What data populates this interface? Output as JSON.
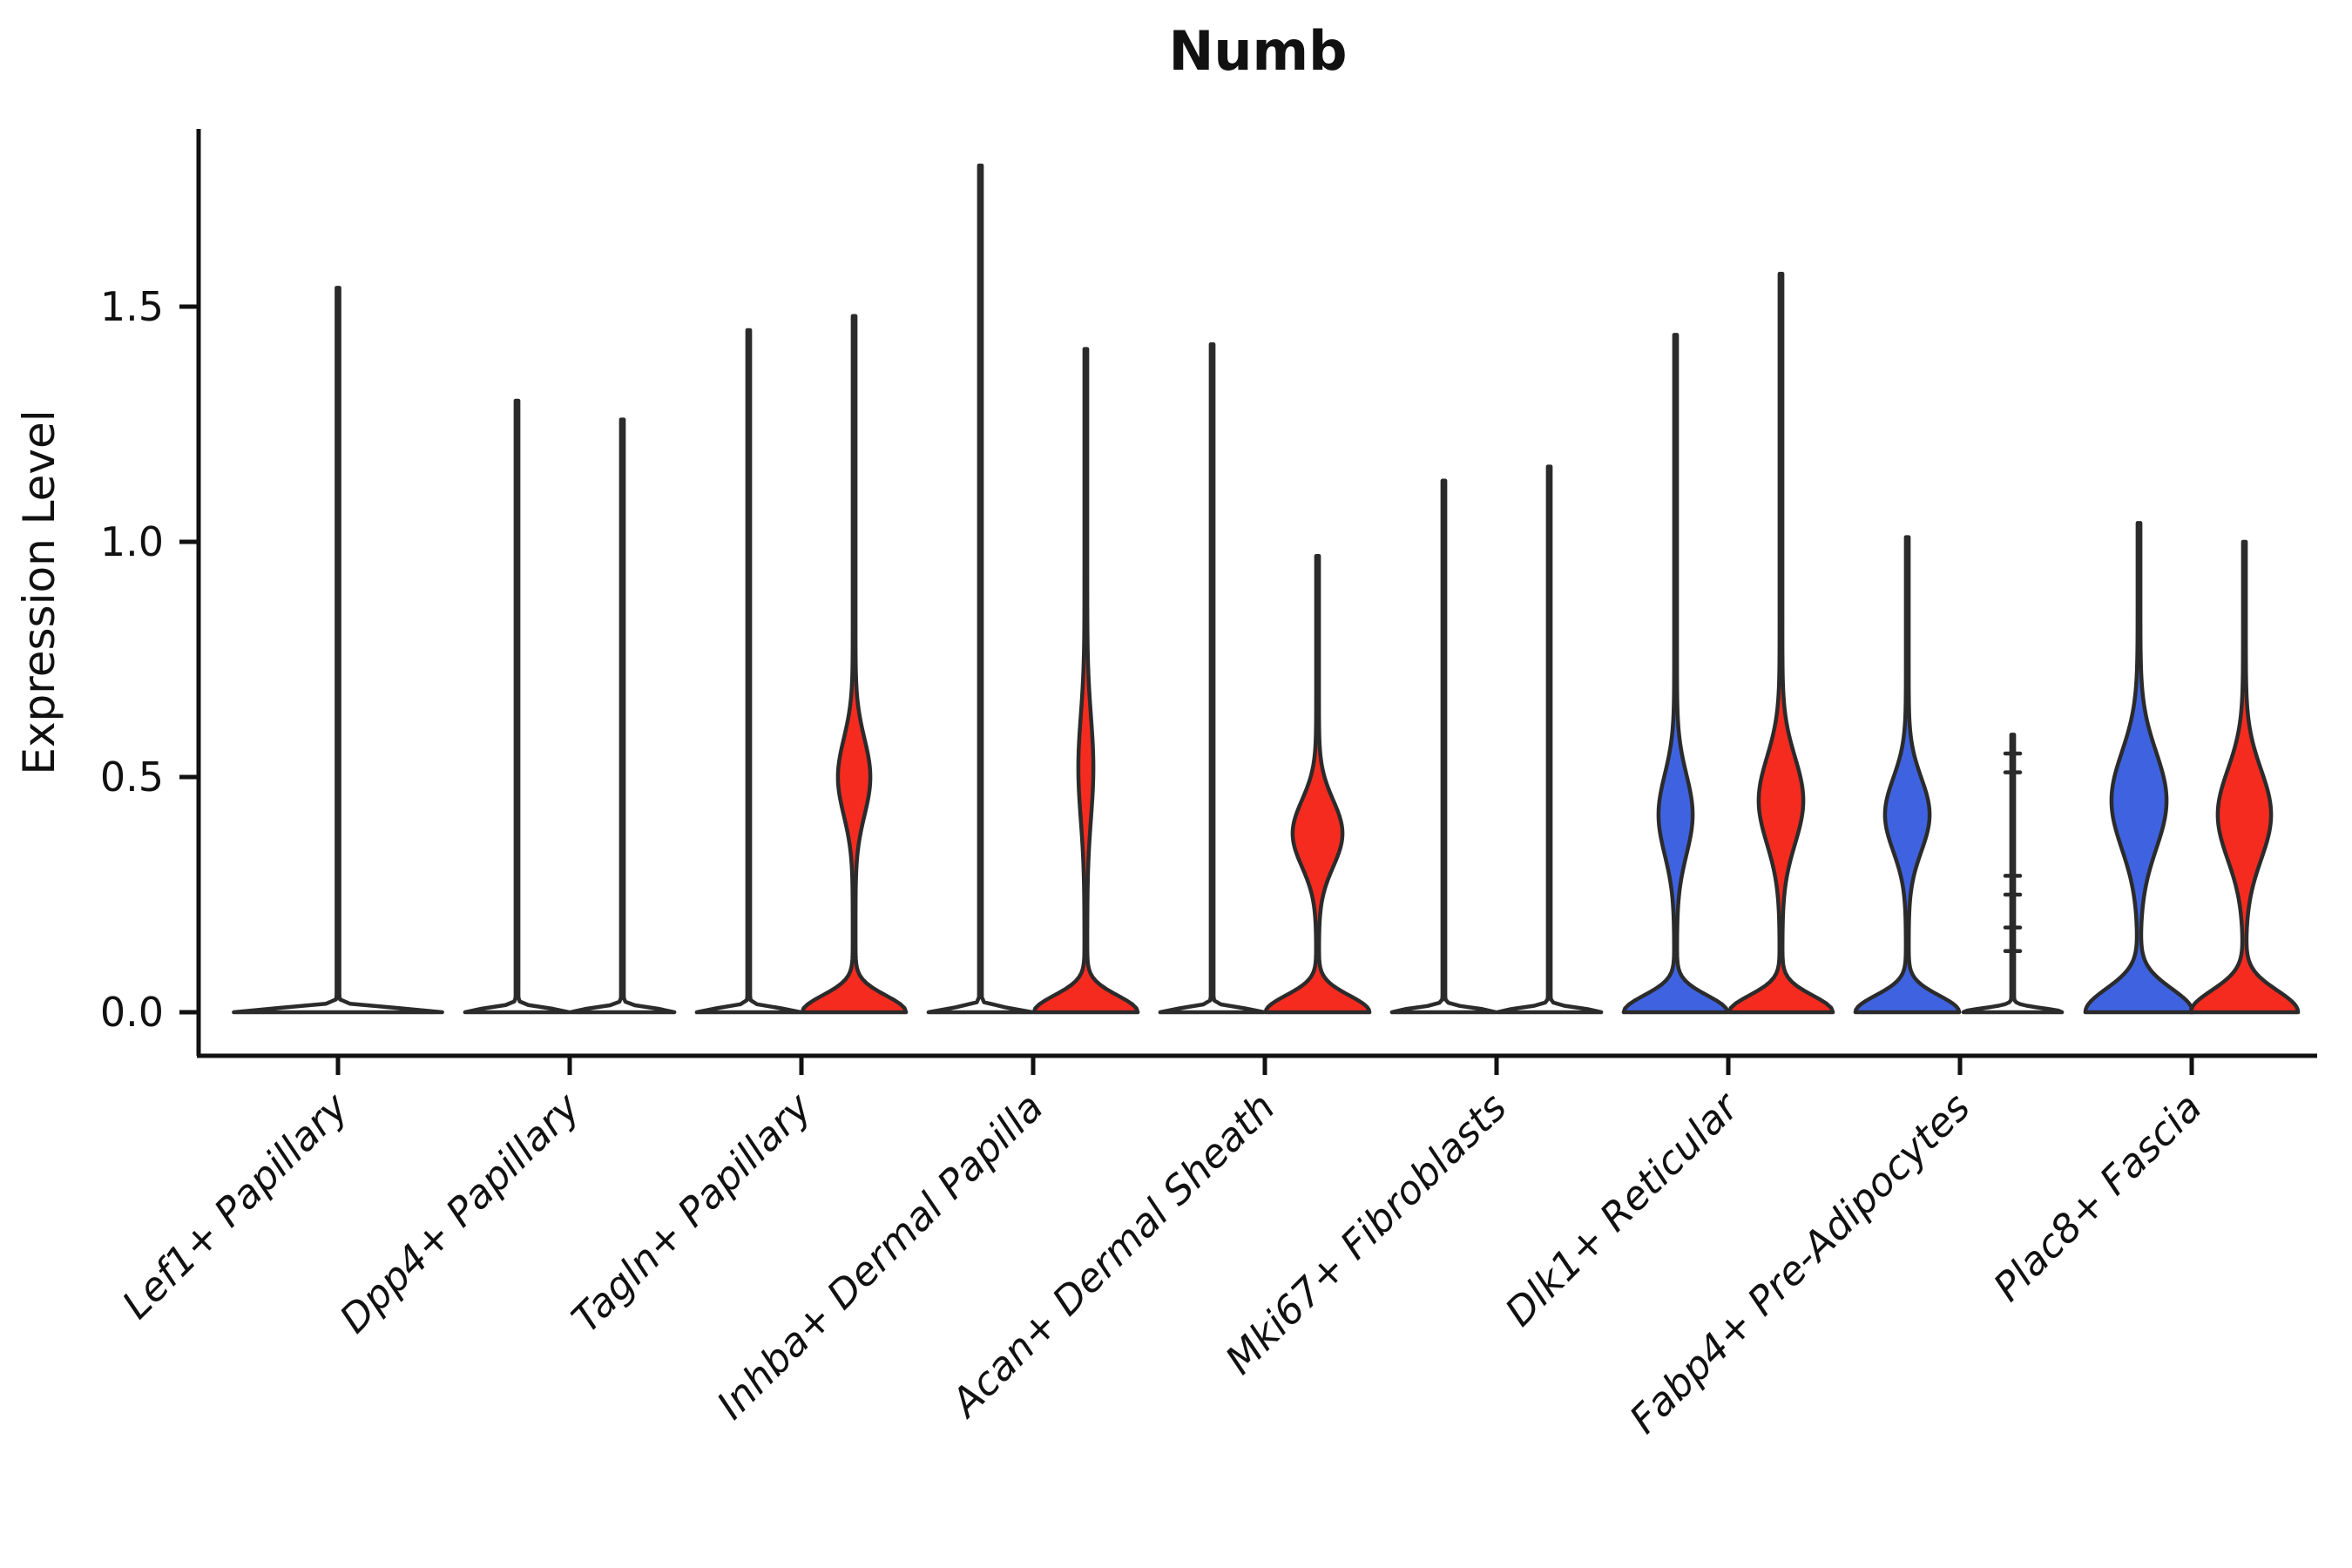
{
  "title": "Numb",
  "ylabel": "Expression Level",
  "colors": {
    "blue": "#3F63E0",
    "red": "#F62B20",
    "white": "#FFFFFF",
    "outline": "#2B2B2B",
    "axis": "#111111"
  },
  "y_axis": {
    "tick_labels": [
      "0.0",
      "0.5",
      "1.0",
      "1.5"
    ],
    "tick_values": [
      0.0,
      0.5,
      1.0,
      1.5
    ]
  },
  "chart_data": {
    "type": "violin",
    "title": "Numb",
    "xlabel": "",
    "ylabel": "Expression Level",
    "ylim": [
      -0.09,
      1.92
    ],
    "yticks": [
      0.0,
      0.5,
      1.0,
      1.5
    ],
    "grid": false,
    "legend_position": "none",
    "categories": [
      "Lef1+ Papillary",
      "Dpp4+ Papillary",
      "Tagln+ Papillary",
      "Inhba+ Dermal Papilla",
      "Acan+ Dermal Sheath",
      "Mki67+ Fibroblasts",
      "Dlk1+ Reticular",
      "Fabp4+ Pre-Adipocytes",
      "Plac8+ Fascia"
    ],
    "series_note": "each category holds up to two dodged violins; low-expression violins render as outline-only spikes over a flat base at 0",
    "violins": [
      {
        "category_index": 0,
        "side": "center",
        "fill": "white",
        "max": 1.54,
        "base_halfwidth": 118,
        "ped_sigma": 0.012,
        "bulge": null,
        "dashes": null
      },
      {
        "category_index": 1,
        "side": "left",
        "fill": "white",
        "max": 1.3,
        "base_halfwidth": 58,
        "ped_sigma": 0.012,
        "bulge": null,
        "dashes": null
      },
      {
        "category_index": 1,
        "side": "right",
        "fill": "white",
        "max": 1.26,
        "base_halfwidth": 58,
        "ped_sigma": 0.012,
        "bulge": null,
        "dashes": null
      },
      {
        "category_index": 2,
        "side": "left",
        "fill": "white",
        "max": 1.45,
        "base_halfwidth": 58,
        "ped_sigma": 0.012,
        "bulge": null,
        "dashes": null
      },
      {
        "category_index": 2,
        "side": "right",
        "fill": "red",
        "max": 1.48,
        "base_halfwidth": 58,
        "ped_sigma": 0.05,
        "bulge": {
          "center": 0.5,
          "sigma": 0.115,
          "halfwidth": 17
        },
        "dashes": null
      },
      {
        "category_index": 3,
        "side": "left",
        "fill": "white",
        "max": 1.8,
        "base_halfwidth": 58,
        "ped_sigma": 0.012,
        "bulge": null,
        "dashes": null
      },
      {
        "category_index": 3,
        "side": "right",
        "fill": "red",
        "max": 1.41,
        "base_halfwidth": 58,
        "ped_sigma": 0.05,
        "bulge": {
          "center": 0.52,
          "sigma": 0.155,
          "halfwidth": 7
        },
        "dashes": null
      },
      {
        "category_index": 4,
        "side": "left",
        "fill": "white",
        "max": 1.42,
        "base_halfwidth": 58,
        "ped_sigma": 0.012,
        "bulge": null,
        "dashes": null
      },
      {
        "category_index": 4,
        "side": "right",
        "fill": "red",
        "max": 0.97,
        "base_halfwidth": 58,
        "ped_sigma": 0.05,
        "bulge": {
          "center": 0.38,
          "sigma": 0.1,
          "halfwidth": 27
        },
        "dashes": null
      },
      {
        "category_index": 5,
        "side": "left",
        "fill": "white",
        "max": 1.13,
        "base_halfwidth": 58,
        "ped_sigma": 0.012,
        "bulge": null,
        "dashes": null
      },
      {
        "category_index": 5,
        "side": "right",
        "fill": "white",
        "max": 1.16,
        "base_halfwidth": 58,
        "ped_sigma": 0.012,
        "bulge": null,
        "dashes": null
      },
      {
        "category_index": 6,
        "side": "left",
        "fill": "blue",
        "max": 1.44,
        "base_halfwidth": 58,
        "ped_sigma": 0.05,
        "bulge": {
          "center": 0.42,
          "sigma": 0.12,
          "halfwidth": 18
        },
        "dashes": null
      },
      {
        "category_index": 6,
        "side": "right",
        "fill": "red",
        "max": 1.57,
        "base_halfwidth": 58,
        "ped_sigma": 0.05,
        "bulge": {
          "center": 0.45,
          "sigma": 0.13,
          "halfwidth": 24
        },
        "dashes": null
      },
      {
        "category_index": 7,
        "side": "left",
        "fill": "blue",
        "max": 1.01,
        "base_halfwidth": 58,
        "ped_sigma": 0.05,
        "bulge": {
          "center": 0.42,
          "sigma": 0.11,
          "halfwidth": 24
        },
        "dashes": null
      },
      {
        "category_index": 7,
        "side": "right",
        "fill": "white",
        "max": 0.59,
        "base_halfwidth": 55,
        "ped_sigma": 0.012,
        "bulge": null,
        "dashes": [
          0.13,
          0.18,
          0.25,
          0.29,
          0.51,
          0.55
        ]
      },
      {
        "category_index": 8,
        "side": "left",
        "fill": "blue",
        "max": 1.04,
        "base_halfwidth": 60,
        "ped_sigma": 0.07,
        "bulge": {
          "center": 0.45,
          "sigma": 0.145,
          "halfwidth": 30
        },
        "dashes": null
      },
      {
        "category_index": 8,
        "side": "right",
        "fill": "red",
        "max": 1.0,
        "base_halfwidth": 60,
        "ped_sigma": 0.065,
        "bulge": {
          "center": 0.42,
          "sigma": 0.135,
          "halfwidth": 29
        },
        "dashes": null
      }
    ]
  }
}
